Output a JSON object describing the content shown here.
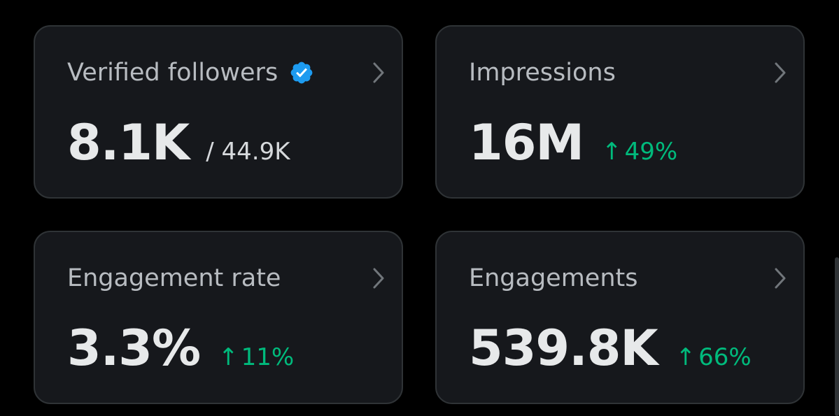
{
  "colors": {
    "background": "#000000",
    "card_background": "#16181c",
    "card_border": "#2f3336",
    "title_text": "#b8bcc1",
    "value_text": "#e7e9ea",
    "positive_change": "#00ba7c",
    "verified_badge": "#1d9bf0"
  },
  "cards": [
    {
      "title": "Verified followers",
      "value": "8.1K",
      "secondary": "/ 44.9K",
      "icon": "verified-badge-icon",
      "chevron_icon": "chevron-right-icon"
    },
    {
      "title": "Impressions",
      "value": "16M",
      "change_arrow": "↑",
      "change": "49%",
      "chevron_icon": "chevron-right-icon"
    },
    {
      "title": "Engagement rate",
      "value": "3.3%",
      "change_arrow": "↑",
      "change": "11%",
      "chevron_icon": "chevron-right-icon"
    },
    {
      "title": "Engagements",
      "value": "539.8K",
      "change_arrow": "↑",
      "change": "66%",
      "chevron_icon": "chevron-right-icon"
    }
  ]
}
